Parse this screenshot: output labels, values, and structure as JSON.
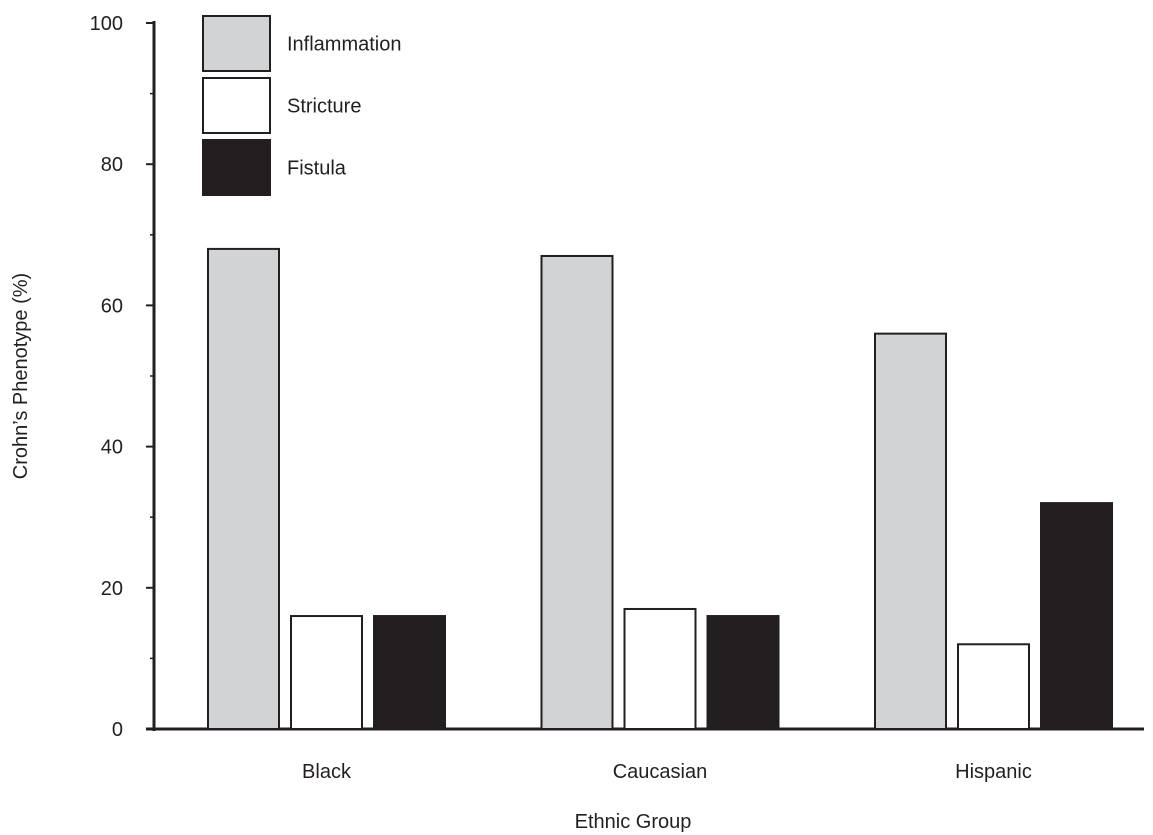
{
  "chart_data": {
    "type": "bar",
    "title": "",
    "xlabel": "Ethnic Group",
    "ylabel": "Crohn’s Phenotype (%)",
    "ylim": [
      0,
      100
    ],
    "yticks": [
      0,
      20,
      40,
      60,
      80,
      100
    ],
    "categories": [
      "Black",
      "Caucasian",
      "Hispanic"
    ],
    "series": [
      {
        "name": "Inflammation",
        "values": [
          68,
          67,
          56
        ],
        "color": "#d1d3d4"
      },
      {
        "name": "Stricture",
        "values": [
          16,
          17,
          12
        ],
        "color": "#ffffff"
      },
      {
        "name": "Fistula",
        "values": [
          16,
          16,
          32
        ],
        "color": "#231f20"
      }
    ],
    "legend_position": "top-left",
    "grid": false,
    "stroke_color": "#231f20"
  }
}
